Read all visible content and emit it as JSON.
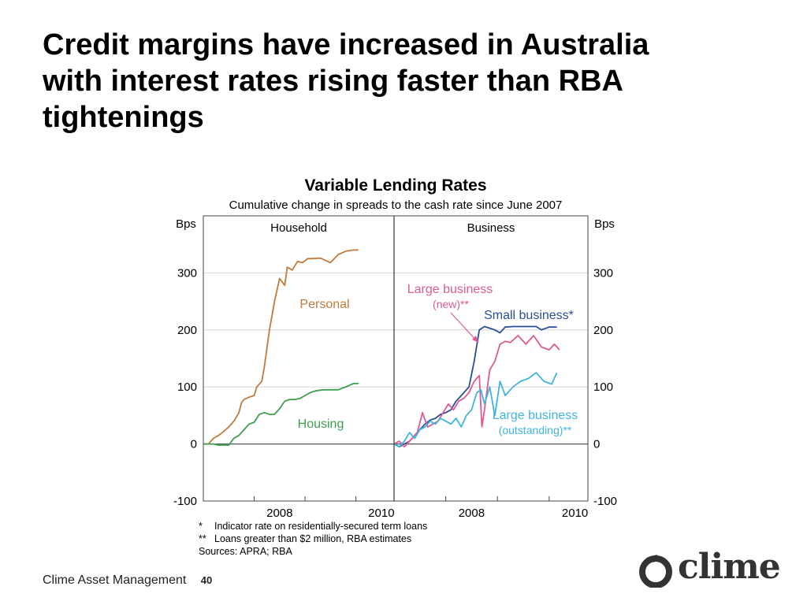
{
  "slide": {
    "title_lines": [
      "Credit margins have increased in Australia",
      "with interest rates rising faster than RBA",
      "tightenings"
    ],
    "footer_text": "Clime Asset Management",
    "page_number": "40",
    "logo_text": "clime"
  },
  "chart_data": {
    "type": "line",
    "title": "Variable Lending Rates",
    "subtitle": "Cumulative change in spreads to the cash rate since June 2007",
    "ylabel_left": "Bps",
    "ylabel_right": "Bps",
    "ylim": [
      -100,
      400
    ],
    "yticks": [
      -100,
      0,
      100,
      200,
      300
    ],
    "ytick_labels_left": [
      "-100",
      "0",
      "100",
      "200",
      "300"
    ],
    "ytick_labels_right": [
      "-100",
      "0",
      "100",
      "200",
      "300"
    ],
    "grid": true,
    "panels": [
      {
        "name": "Household",
        "xlim": [
          2007.0,
          2010.75
        ],
        "xticks": [
          2008,
          2010
        ],
        "xtick_labels": [
          "2008",
          "2010"
        ],
        "series": [
          {
            "name": "Personal",
            "color": "#c07a3c",
            "x": [
              2007.0,
              2007.1,
              2007.2,
              2007.3,
              2007.4,
              2007.5,
              2007.6,
              2007.7,
              2007.75,
              2007.8,
              2007.9,
              2008.0,
              2008.05,
              2008.15,
              2008.2,
              2008.3,
              2008.4,
              2008.5,
              2008.6,
              2008.65,
              2008.75,
              2008.85,
              2008.95,
              2009.05,
              2009.15,
              2009.3,
              2009.5,
              2009.65,
              2009.8,
              2009.95,
              2010.05
            ],
            "y": [
              0,
              0,
              10,
              15,
              22,
              30,
              40,
              55,
              72,
              78,
              82,
              85,
              100,
              110,
              135,
              200,
              250,
              290,
              278,
              310,
              305,
              320,
              318,
              325,
              325,
              326,
              318,
              332,
              338,
              340,
              340
            ]
          },
          {
            "name": "Housing",
            "color": "#3f9e4e",
            "x": [
              2007.0,
              2007.1,
              2007.2,
              2007.3,
              2007.4,
              2007.5,
              2007.6,
              2007.7,
              2007.8,
              2007.9,
              2008.0,
              2008.1,
              2008.2,
              2008.3,
              2008.4,
              2008.5,
              2008.6,
              2008.7,
              2008.8,
              2008.9,
              2009.0,
              2009.1,
              2009.2,
              2009.35,
              2009.5,
              2009.65,
              2009.8,
              2009.95,
              2010.05
            ],
            "y": [
              0,
              0,
              0,
              -2,
              -2,
              -2,
              10,
              15,
              25,
              35,
              38,
              52,
              55,
              52,
              52,
              62,
              75,
              78,
              78,
              80,
              85,
              90,
              93,
              95,
              95,
              95,
              100,
              106,
              106
            ]
          }
        ],
        "annotations": [
          {
            "text": "Personal",
            "x": 2008.45,
            "y": 246,
            "color": "#c07a3c"
          },
          {
            "text": "Housing",
            "x": 2008.3,
            "y": 36,
            "color": "#3f9e4e"
          }
        ]
      },
      {
        "name": "Business",
        "xlim": [
          2007.0,
          2010.75
        ],
        "xticks": [
          2008,
          2010
        ],
        "xtick_labels": [
          "2008",
          "2010"
        ],
        "series": [
          {
            "name": "Small business*",
            "color": "#2a4f96",
            "x": [
              2007.0,
              2007.1,
              2007.2,
              2007.3,
              2007.4,
              2007.5,
              2007.6,
              2007.7,
              2007.8,
              2007.9,
              2008.0,
              2008.1,
              2008.2,
              2008.3,
              2008.45,
              2008.55,
              2008.65,
              2008.75,
              2008.85,
              2008.95,
              2009.05,
              2009.15,
              2009.3,
              2009.45,
              2009.6,
              2009.75,
              2009.85,
              2010.0,
              2010.15
            ],
            "y": [
              0,
              -5,
              0,
              5,
              15,
              25,
              35,
              42,
              45,
              52,
              55,
              60,
              75,
              85,
              100,
              145,
              200,
              206,
              203,
              200,
              195,
              205,
              206,
              206,
              206,
              206,
              200,
              205,
              205
            ]
          },
          {
            "name": "Large business (new)**",
            "color": "#dc5a92",
            "x": [
              2007.0,
              2007.1,
              2007.2,
              2007.3,
              2007.45,
              2007.55,
              2007.65,
              2007.75,
              2007.85,
              2007.95,
              2008.05,
              2008.15,
              2008.25,
              2008.35,
              2008.45,
              2008.55,
              2008.65,
              2008.7,
              2008.75,
              2008.85,
              2008.95,
              2009.05,
              2009.15,
              2009.25,
              2009.4,
              2009.55,
              2009.7,
              2009.85,
              2010.0,
              2010.1,
              2010.2
            ],
            "y": [
              0,
              5,
              -5,
              5,
              20,
              55,
              30,
              35,
              40,
              55,
              70,
              60,
              75,
              80,
              90,
              110,
              120,
              30,
              60,
              130,
              145,
              175,
              180,
              178,
              190,
              175,
              190,
              170,
              165,
              175,
              165
            ]
          },
          {
            "name": "Large business (outstanding)**",
            "color": "#41b4de",
            "x": [
              2007.0,
              2007.1,
              2007.2,
              2007.3,
              2007.4,
              2007.5,
              2007.6,
              2007.7,
              2007.8,
              2007.9,
              2008.0,
              2008.1,
              2008.2,
              2008.3,
              2008.4,
              2008.5,
              2008.6,
              2008.68,
              2008.75,
              2008.85,
              2008.95,
              2009.05,
              2009.15,
              2009.3,
              2009.45,
              2009.6,
              2009.75,
              2009.9,
              2010.05,
              2010.15
            ],
            "y": [
              0,
              -5,
              5,
              20,
              10,
              25,
              30,
              40,
              35,
              45,
              40,
              35,
              45,
              30,
              50,
              60,
              90,
              95,
              70,
              100,
              50,
              110,
              85,
              100,
              110,
              115,
              125,
              110,
              105,
              125
            ]
          }
        ],
        "annotations": [
          {
            "text": "Large business",
            "line2": "(new)**",
            "color": "#dc5a92"
          },
          {
            "text": "Small business*",
            "color": "#2a4f96"
          },
          {
            "text": "Large business",
            "line2": "(outstanding)**",
            "color": "#41b4de"
          }
        ]
      }
    ],
    "footnotes": [
      {
        "mark": "*",
        "text": "Indicator rate on residentially-secured term loans"
      },
      {
        "mark": "**",
        "text": "Loans greater than $2 million, RBA estimates"
      },
      {
        "mark": "",
        "text": "Sources: APRA; RBA"
      }
    ]
  }
}
